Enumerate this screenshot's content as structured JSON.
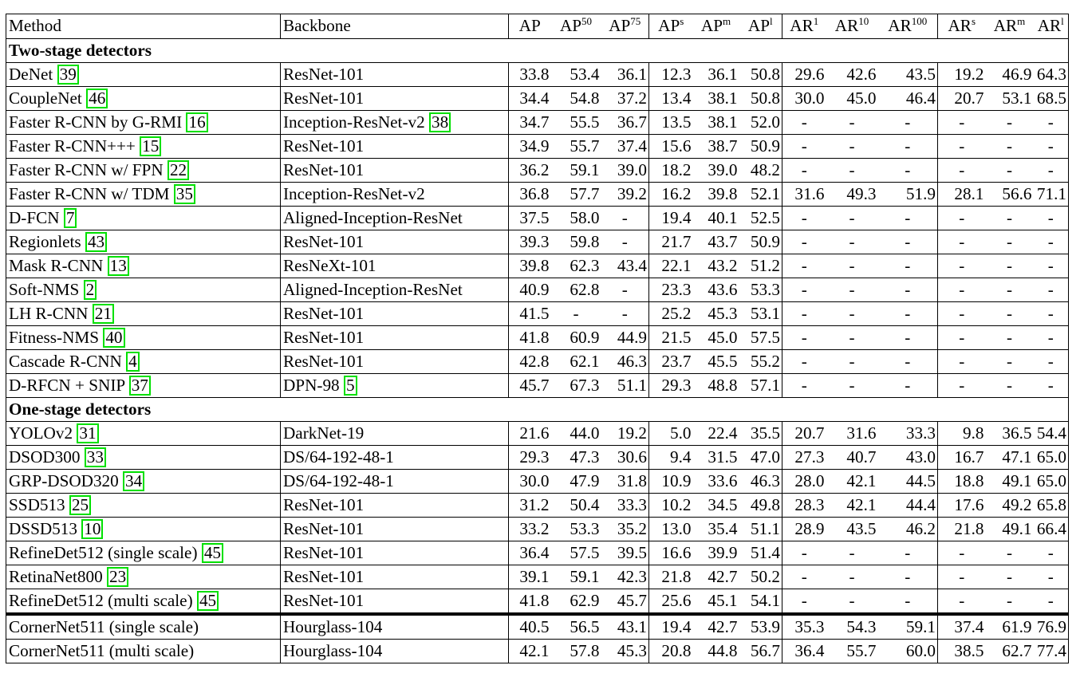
{
  "header": [
    "Method",
    "Backbone",
    "AP",
    "AP^50",
    "AP^75",
    "AP^s",
    "AP^m",
    "AP^l",
    "AR^1",
    "AR^10",
    "AR^100",
    "AR^s",
    "AR^m",
    "AR^l"
  ],
  "sections": [
    {
      "title": "Two-stage detectors",
      "rows": [
        {
          "method": "DeNet",
          "mcite": "39",
          "backbone": "ResNet-101",
          "bcite": "",
          "vals": [
            "33.8",
            "53.4",
            "36.1",
            "12.3",
            "36.1",
            "50.8",
            "29.6",
            "42.6",
            "43.5",
            "19.2",
            "46.9",
            "64.3"
          ]
        },
        {
          "method": "CoupleNet",
          "mcite": "46",
          "backbone": "ResNet-101",
          "bcite": "",
          "vals": [
            "34.4",
            "54.8",
            "37.2",
            "13.4",
            "38.1",
            "50.8",
            "30.0",
            "45.0",
            "46.4",
            "20.7",
            "53.1",
            "68.5"
          ]
        },
        {
          "method": "Faster R-CNN by G-RMI",
          "mcite": "16",
          "backbone": "Inception-ResNet-v2",
          "bcite": "38",
          "vals": [
            "34.7",
            "55.5",
            "36.7",
            "13.5",
            "38.1",
            "52.0",
            "-",
            "-",
            "-",
            "-",
            "-",
            "-"
          ]
        },
        {
          "method": "Faster R-CNN+++",
          "mcite": "15",
          "backbone": "ResNet-101",
          "bcite": "",
          "vals": [
            "34.9",
            "55.7",
            "37.4",
            "15.6",
            "38.7",
            "50.9",
            "-",
            "-",
            "-",
            "-",
            "-",
            "-"
          ]
        },
        {
          "method": "Faster R-CNN w/ FPN",
          "mcite": "22",
          "backbone": "ResNet-101",
          "bcite": "",
          "vals": [
            "36.2",
            "59.1",
            "39.0",
            "18.2",
            "39.0",
            "48.2",
            "-",
            "-",
            "-",
            "-",
            "-",
            "-"
          ]
        },
        {
          "method": "Faster R-CNN w/ TDM",
          "mcite": "35",
          "backbone": "Inception-ResNet-v2",
          "bcite": "",
          "vals": [
            "36.8",
            "57.7",
            "39.2",
            "16.2",
            "39.8",
            "52.1",
            "31.6",
            "49.3",
            "51.9",
            "28.1",
            "56.6",
            "71.1"
          ]
        },
        {
          "method": "D-FCN",
          "mcite": "7",
          "backbone": "Aligned-Inception-ResNet",
          "bcite": "",
          "vals": [
            "37.5",
            "58.0",
            "-",
            "19.4",
            "40.1",
            "52.5",
            "-",
            "-",
            "-",
            "-",
            "-",
            "-"
          ]
        },
        {
          "method": "Regionlets",
          "mcite": "43",
          "backbone": "ResNet-101",
          "bcite": "",
          "vals": [
            "39.3",
            "59.8",
            "-",
            "21.7",
            "43.7",
            "50.9",
            "-",
            "-",
            "-",
            "-",
            "-",
            "-"
          ]
        },
        {
          "method": "Mask R-CNN",
          "mcite": "13",
          "backbone": "ResNeXt-101",
          "bcite": "",
          "vals": [
            "39.8",
            "62.3",
            "43.4",
            "22.1",
            "43.2",
            "51.2",
            "-",
            "-",
            "-",
            "-",
            "-",
            "-"
          ]
        },
        {
          "method": "Soft-NMS",
          "mcite": "2",
          "backbone": "Aligned-Inception-ResNet",
          "bcite": "",
          "vals": [
            "40.9",
            "62.8",
            "-",
            "23.3",
            "43.6",
            "53.3",
            "-",
            "-",
            "-",
            "-",
            "-",
            "-"
          ]
        },
        {
          "method": "LH R-CNN",
          "mcite": "21",
          "backbone": "ResNet-101",
          "bcite": "",
          "vals": [
            "41.5",
            "-",
            "-",
            "25.2",
            "45.3",
            "53.1",
            "-",
            "-",
            "-",
            "-",
            "-",
            "-"
          ]
        },
        {
          "method": "Fitness-NMS",
          "mcite": "40",
          "backbone": "ResNet-101",
          "bcite": "",
          "vals": [
            "41.8",
            "60.9",
            "44.9",
            "21.5",
            "45.0",
            "57.5",
            "-",
            "-",
            "-",
            "-",
            "-",
            "-"
          ]
        },
        {
          "method": "Cascade R-CNN",
          "mcite": "4",
          "backbone": "ResNet-101",
          "bcite": "",
          "vals": [
            "42.8",
            "62.1",
            "46.3",
            "23.7",
            "45.5",
            "55.2",
            "-",
            "-",
            "-",
            "-",
            "-",
            "-"
          ]
        },
        {
          "method": "D-RFCN + SNIP",
          "mcite": "37",
          "backbone": "DPN-98",
          "bcite": "5",
          "vals": [
            "45.7",
            "67.3",
            "51.1",
            "29.3",
            "48.8",
            "57.1",
            "-",
            "-",
            "-",
            "-",
            "-",
            "-"
          ]
        }
      ]
    },
    {
      "title": "One-stage detectors",
      "rows": [
        {
          "method": "YOLOv2",
          "mcite": "31",
          "backbone": "DarkNet-19",
          "bcite": "",
          "vals": [
            "21.6",
            "44.0",
            "19.2",
            "5.0",
            "22.4",
            "35.5",
            "20.7",
            "31.6",
            "33.3",
            "9.8",
            "36.5",
            "54.4"
          ]
        },
        {
          "method": "DSOD300",
          "mcite": "33",
          "backbone": "DS/64-192-48-1",
          "bcite": "",
          "vals": [
            "29.3",
            "47.3",
            "30.6",
            "9.4",
            "31.5",
            "47.0",
            "27.3",
            "40.7",
            "43.0",
            "16.7",
            "47.1",
            "65.0"
          ]
        },
        {
          "method": "GRP-DSOD320",
          "mcite": "34",
          "backbone": "DS/64-192-48-1",
          "bcite": "",
          "vals": [
            "30.0",
            "47.9",
            "31.8",
            "10.9",
            "33.6",
            "46.3",
            "28.0",
            "42.1",
            "44.5",
            "18.8",
            "49.1",
            "65.0"
          ]
        },
        {
          "method": "SSD513",
          "mcite": "25",
          "backbone": "ResNet-101",
          "bcite": "",
          "vals": [
            "31.2",
            "50.4",
            "33.3",
            "10.2",
            "34.5",
            "49.8",
            "28.3",
            "42.1",
            "44.4",
            "17.6",
            "49.2",
            "65.8"
          ]
        },
        {
          "method": "DSSD513",
          "mcite": "10",
          "backbone": "ResNet-101",
          "bcite": "",
          "vals": [
            "33.2",
            "53.3",
            "35.2",
            "13.0",
            "35.4",
            "51.1",
            "28.9",
            "43.5",
            "46.2",
            "21.8",
            "49.1",
            "66.4"
          ]
        },
        {
          "method": "RefineDet512 (single scale)",
          "mcite": "45",
          "backbone": "ResNet-101",
          "bcite": "",
          "vals": [
            "36.4",
            "57.5",
            "39.5",
            "16.6",
            "39.9",
            "51.4",
            "-",
            "-",
            "-",
            "-",
            "-",
            "-"
          ]
        },
        {
          "method": "RetinaNet800",
          "mcite": "23",
          "backbone": "ResNet-101",
          "bcite": "",
          "vals": [
            "39.1",
            "59.1",
            "42.3",
            "21.8",
            "42.7",
            "50.2",
            "-",
            "-",
            "-",
            "-",
            "-",
            "-"
          ]
        },
        {
          "method": "RefineDet512 (multi scale)",
          "mcite": "45",
          "backbone": "ResNet-101",
          "bcite": "",
          "vals": [
            "41.8",
            "62.9",
            "45.7",
            "25.6",
            "45.1",
            "54.1",
            "-",
            "-",
            "-",
            "-",
            "-",
            "-"
          ]
        }
      ]
    }
  ],
  "ours": [
    {
      "method": "CornerNet511 (single scale)",
      "mcite": "",
      "backbone": "Hourglass-104",
      "bcite": "",
      "vals": [
        "40.5",
        "56.5",
        "43.1",
        "19.4",
        "42.7",
        "53.9",
        "35.3",
        "54.3",
        "59.1",
        "37.4",
        "61.9",
        "76.9"
      ]
    },
    {
      "method": "CornerNet511 (multi scale)",
      "mcite": "",
      "backbone": "Hourglass-104",
      "bcite": "",
      "vals": [
        "42.1",
        "57.8",
        "45.3",
        "20.8",
        "44.8",
        "56.7",
        "36.4",
        "55.7",
        "60.0",
        "38.5",
        "62.7",
        "77.4"
      ]
    }
  ]
}
